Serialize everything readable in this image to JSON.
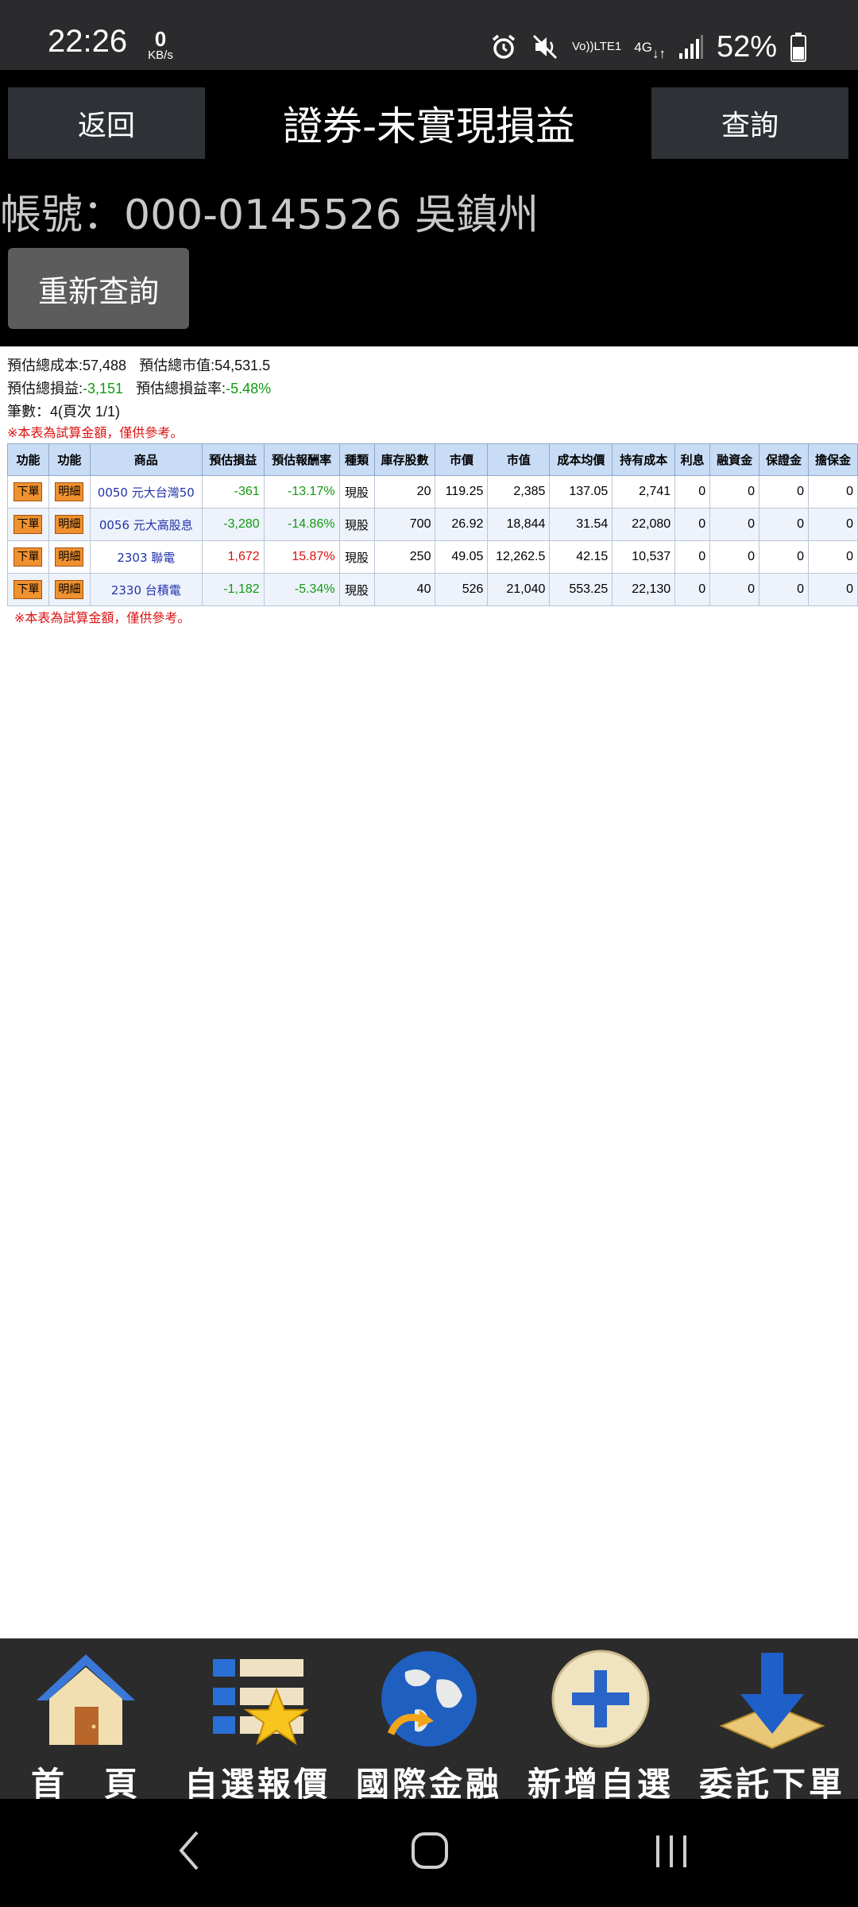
{
  "status_bar": {
    "time": "22:26",
    "net_speed_value": "0",
    "net_speed_unit": "KB/s",
    "volte_top": "Vo))",
    "volte_bottom": "LTE1",
    "network_type": "4G",
    "battery_percent": "52%"
  },
  "header": {
    "back_label": "返回",
    "title": "證券-未實現損益",
    "query_label": "查詢",
    "account": "帳號：000-0145526 吳鎮州",
    "requery_label": "重新查詢"
  },
  "summary": {
    "total_cost_label": "預估總成本:",
    "total_cost": "57,488",
    "total_market_value_label": "預估總市值:",
    "total_market_value": "54,531.5",
    "total_pnl_label": "預估總損益:",
    "total_pnl": "-3,151",
    "total_pnl_rate_label": "預估總損益率:",
    "total_pnl_rate": "-5.48%",
    "count_text": "筆數：4(頁次 1/1)",
    "note": "※本表為試算金額，僅供參考。"
  },
  "table": {
    "headers": [
      "功能",
      "功能",
      "商品",
      "預估損益",
      "預估報酬率",
      "種類",
      "庫存股數",
      "市價",
      "市值",
      "成本均價",
      "持有成本",
      "利息",
      "融資金",
      "保證金",
      "擔保金"
    ],
    "order_label": "下單",
    "detail_label": "明細",
    "rows": [
      {
        "product": "0050 元大台灣50",
        "pnl": "-361",
        "rate": "-13.17%",
        "kind": "現股",
        "shares": "20",
        "price": "119.25",
        "market_value": "2,385",
        "avg_cost": "137.05",
        "holding_cost": "2,741",
        "interest": "0",
        "margin_loan": "0",
        "deposit": "0",
        "collateral": "0"
      },
      {
        "product": "0056 元大高股息",
        "pnl": "-3,280",
        "rate": "-14.86%",
        "kind": "現股",
        "shares": "700",
        "price": "26.92",
        "market_value": "18,844",
        "avg_cost": "31.54",
        "holding_cost": "22,080",
        "interest": "0",
        "margin_loan": "0",
        "deposit": "0",
        "collateral": "0"
      },
      {
        "product": "2303 聯電",
        "pnl": "1,672",
        "rate": "15.87%",
        "kind": "現股",
        "shares": "250",
        "price": "49.05",
        "market_value": "12,262.5",
        "avg_cost": "42.15",
        "holding_cost": "10,537",
        "interest": "0",
        "margin_loan": "0",
        "deposit": "0",
        "collateral": "0"
      },
      {
        "product": "2330 台積電",
        "pnl": "-1,182",
        "rate": "-5.34%",
        "kind": "現股",
        "shares": "40",
        "price": "526",
        "market_value": "21,040",
        "avg_cost": "553.25",
        "holding_cost": "22,130",
        "interest": "0",
        "margin_loan": "0",
        "deposit": "0",
        "collateral": "0"
      }
    ]
  },
  "bottom_nav": {
    "items": [
      {
        "label": "首　頁",
        "icon": "home-icon"
      },
      {
        "label": "自選報價",
        "icon": "watchlist-icon"
      },
      {
        "label": "國際金融",
        "icon": "globe-icon"
      },
      {
        "label": "新增自選",
        "icon": "add-icon"
      },
      {
        "label": "委託下單",
        "icon": "order-download-icon"
      }
    ]
  },
  "colors": {
    "header_bg": "#000000",
    "button_bg": "#2e3236",
    "table_header_bg": "#c9dcf5",
    "loss_green": "#119911",
    "gain_red": "#dd1111",
    "product_blue": "#2233aa",
    "action_orange": "#f0912f"
  }
}
